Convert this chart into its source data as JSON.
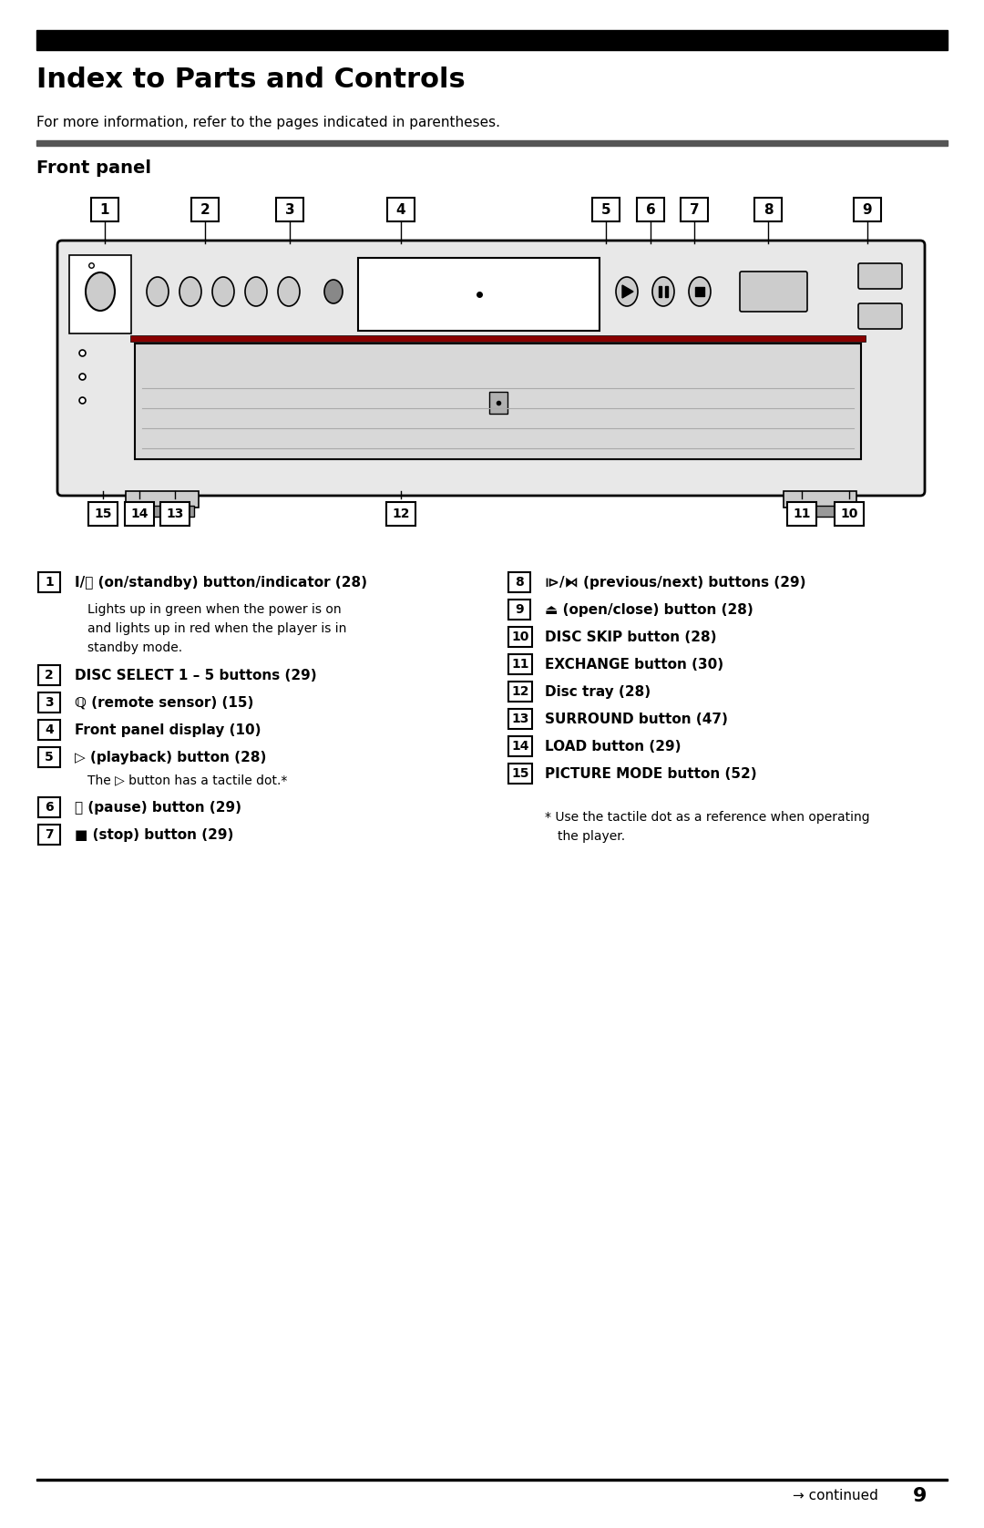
{
  "title": "Index to Parts and Controls",
  "subtitle": "For more information, refer to the pages indicated in parentheses.",
  "section": "Front panel",
  "bg_color": "#ffffff",
  "text_color": "#000000",
  "page_num": "9",
  "continued_text": "→ continued"
}
